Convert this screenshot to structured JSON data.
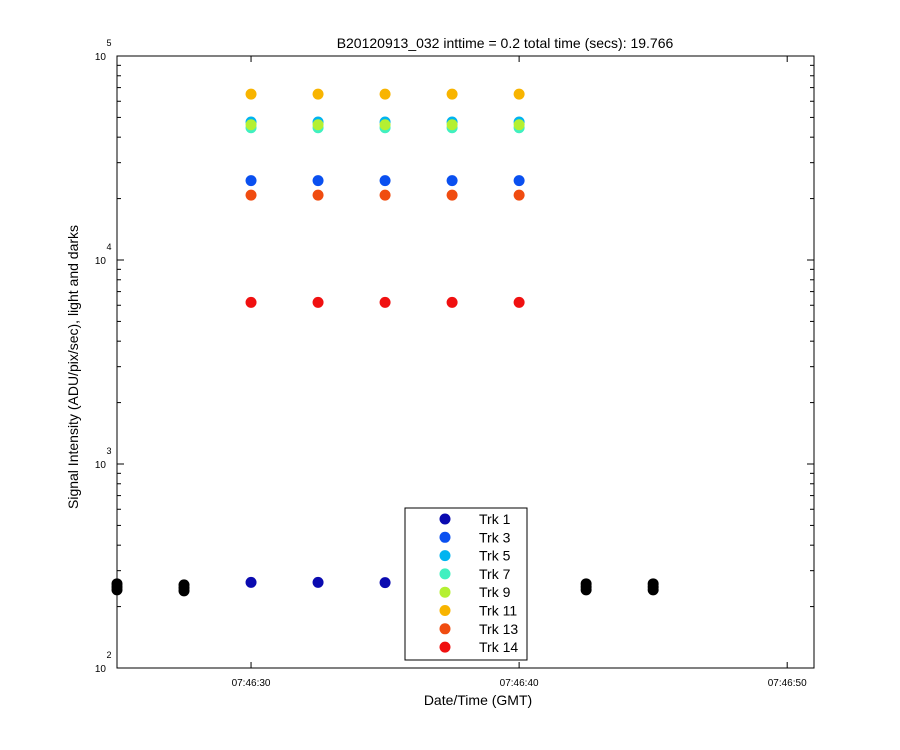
{
  "chart_data": {
    "type": "scatter",
    "title": "B20120913_032 inttime = 0.2 total time (secs): 19.766",
    "xlabel": "Date/Time (GMT)",
    "ylabel": "Signal Intensity (ADU/pix/sec), light and darks",
    "x_axis": {
      "type": "time",
      "range": [
        "07:46:25",
        "07:46:51"
      ],
      "ticks": [
        "07:46:30",
        "07:46:40",
        "07:46:50"
      ]
    },
    "y_axis": {
      "scale": "log",
      "range": [
        100,
        100000
      ],
      "ticks": [
        {
          "base": "10",
          "exp": "2",
          "value": 100
        },
        {
          "base": "10",
          "exp": "3",
          "value": 1000
        },
        {
          "base": "10",
          "exp": "4",
          "value": 10000
        },
        {
          "base": "10",
          "exp": "5",
          "value": 100000
        }
      ]
    },
    "grid": false,
    "legend_position": "bottom-center",
    "x": [
      "07:46:30",
      "07:46:32.5",
      "07:46:35",
      "07:46:37.5",
      "07:46:40"
    ],
    "series": [
      {
        "name": "Trk 1",
        "color": "#0a0ab0",
        "values": [
          263,
          263,
          262,
          null,
          null
        ]
      },
      {
        "name": "Trk 3",
        "color": "#0a50f0",
        "values": [
          24500,
          24500,
          24500,
          24500,
          24500
        ]
      },
      {
        "name": "Trk 5",
        "color": "#00b4f0",
        "values": [
          47500,
          47500,
          47500,
          47500,
          47500
        ]
      },
      {
        "name": "Trk 7",
        "color": "#40f0c0",
        "values": [
          44500,
          44500,
          44500,
          44500,
          44500
        ]
      },
      {
        "name": "Trk 9",
        "color": "#b4f032",
        "values": [
          46000,
          46000,
          46000,
          46000,
          46000
        ]
      },
      {
        "name": "Trk 11",
        "color": "#f8b400",
        "values": [
          65000,
          65000,
          65000,
          65000,
          65000
        ]
      },
      {
        "name": "Trk 13",
        "color": "#f04c10",
        "values": [
          20800,
          20800,
          20800,
          20800,
          20800
        ]
      },
      {
        "name": "Trk 14",
        "color": "#f01010",
        "values": [
          6200,
          6200,
          6200,
          6200,
          6200
        ]
      }
    ],
    "dark_frames": {
      "color": "#000000",
      "x": [
        "07:46:25",
        "07:46:27.5",
        "07:46:42.5",
        "07:46:45"
      ],
      "values": [
        250,
        247,
        250,
        250
      ]
    }
  }
}
